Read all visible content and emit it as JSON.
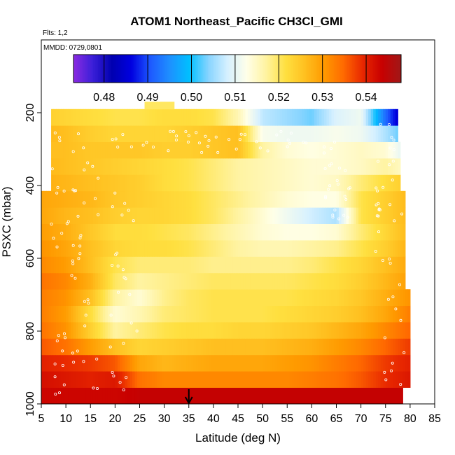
{
  "chart_data": {
    "type": "heatmap",
    "title": "ATOM1 Northeast_Pacific CH3Cl_GMI",
    "subtitle_flights": "Flts: 1,2",
    "subtitle_dates": "MMDD: 0729,0801",
    "xlabel": "Latitude (deg N)",
    "ylabel": "PSXC (mbar)",
    "xlim": [
      5,
      85
    ],
    "ylim": [
      1000,
      0
    ],
    "x_ticks": [
      5,
      10,
      15,
      20,
      25,
      30,
      35,
      40,
      45,
      50,
      55,
      60,
      65,
      70,
      75,
      80,
      85
    ],
    "y_ticks": [
      1000,
      800,
      600,
      400,
      200
    ],
    "colorbar": {
      "min": 0.473,
      "max": 0.548,
      "ticks": [
        0.48,
        0.49,
        0.5,
        0.51,
        0.52,
        0.53,
        0.54
      ],
      "tick_labels": [
        "0.48",
        "0.49",
        "0.50",
        "0.51",
        "0.52",
        "0.53",
        "0.54"
      ],
      "colors": [
        "#8B2BE2",
        "#3A1FD8",
        "#0000B0",
        "#0000E0",
        "#1E5AFF",
        "#1E90FF",
        "#00BFFF",
        "#87D4FF",
        "#D6F0FF",
        "#FFFFE8",
        "#FFF3A0",
        "#FFE040",
        "#FFC020",
        "#FF9A00",
        "#FF6A00",
        "#E82800",
        "#C80000",
        "#A01818"
      ]
    },
    "marker": {
      "x": 35,
      "label": "arrow"
    },
    "lat_bins": [
      5,
      10,
      15,
      20,
      25,
      30,
      35,
      40,
      45,
      50,
      55,
      60,
      65,
      70,
      75,
      80
    ],
    "pressure_bins": [
      1000,
      950,
      900,
      850,
      800,
      750,
      700,
      650,
      600,
      550,
      500,
      450,
      400,
      350,
      300,
      250,
      200
    ],
    "rows": [
      {
        "p_top": 955,
        "p_bot": 1000,
        "x0": 5,
        "x1": 78.5,
        "values": [
          0.543,
          0.543,
          0.543,
          0.543,
          0.544,
          0.544,
          0.544,
          0.544,
          0.544,
          0.544,
          0.544,
          0.544,
          0.544,
          0.544,
          0.544,
          0.544
        ]
      },
      {
        "p_top": 910,
        "p_bot": 955,
        "x0": 5,
        "x1": 80,
        "values": [
          0.542,
          0.541,
          0.54,
          0.541,
          0.534,
          0.532,
          0.532,
          0.532,
          0.532,
          0.532,
          0.532,
          0.533,
          0.534,
          0.536,
          0.539,
          0.541
        ]
      },
      {
        "p_top": 865,
        "p_bot": 910,
        "x0": 5,
        "x1": 80,
        "values": [
          0.54,
          0.539,
          0.538,
          0.536,
          0.529,
          0.527,
          0.528,
          0.529,
          0.529,
          0.529,
          0.53,
          0.531,
          0.533,
          0.535,
          0.538,
          0.54
        ]
      },
      {
        "p_top": 820,
        "p_bot": 865,
        "x0": 5,
        "x1": 80,
        "values": [
          0.536,
          0.534,
          0.53,
          0.526,
          0.523,
          0.524,
          0.525,
          0.526,
          0.526,
          0.526,
          0.527,
          0.528,
          0.53,
          0.532,
          0.535,
          0.538
        ]
      },
      {
        "p_top": 775,
        "p_bot": 820,
        "x0": 5,
        "x1": 80,
        "values": [
          0.534,
          0.531,
          0.524,
          0.517,
          0.519,
          0.521,
          0.522,
          0.522,
          0.523,
          0.523,
          0.524,
          0.525,
          0.527,
          0.529,
          0.532,
          0.535
        ]
      },
      {
        "p_top": 730,
        "p_bot": 775,
        "x0": 5,
        "x1": 80,
        "values": [
          0.533,
          0.53,
          0.522,
          0.514,
          0.516,
          0.519,
          0.52,
          0.521,
          0.521,
          0.521,
          0.522,
          0.523,
          0.524,
          0.526,
          0.529,
          0.533
        ]
      },
      {
        "p_top": 685,
        "p_bot": 730,
        "x0": 5,
        "x1": 80,
        "values": [
          0.533,
          0.531,
          0.526,
          0.517,
          0.514,
          0.518,
          0.52,
          0.521,
          0.521,
          0.521,
          0.521,
          0.522,
          0.523,
          0.525,
          0.528,
          0.531
        ]
      },
      {
        "p_top": 640,
        "p_bot": 685,
        "x0": 5,
        "x1": 79,
        "values": [
          0.534,
          0.532,
          0.528,
          0.52,
          0.517,
          0.518,
          0.519,
          0.52,
          0.52,
          0.52,
          0.52,
          0.521,
          0.522,
          0.524,
          0.527,
          0.53
        ]
      },
      {
        "p_top": 595,
        "p_bot": 640,
        "x0": 5,
        "x1": 79,
        "values": [
          0.532,
          0.53,
          0.526,
          0.521,
          0.519,
          0.519,
          0.519,
          0.518,
          0.518,
          0.518,
          0.518,
          0.519,
          0.521,
          0.523,
          0.526,
          0.529
        ]
      },
      {
        "p_top": 550,
        "p_bot": 595,
        "x0": 5,
        "x1": 79,
        "values": [
          0.531,
          0.529,
          0.526,
          0.523,
          0.522,
          0.522,
          0.521,
          0.519,
          0.517,
          0.516,
          0.516,
          0.517,
          0.518,
          0.521,
          0.524,
          0.528
        ]
      },
      {
        "p_top": 505,
        "p_bot": 550,
        "x0": 5,
        "x1": 79,
        "values": [
          0.53,
          0.528,
          0.525,
          0.522,
          0.522,
          0.521,
          0.52,
          0.518,
          0.516,
          0.514,
          0.513,
          0.513,
          0.514,
          0.519,
          0.523,
          0.527
        ]
      },
      {
        "p_top": 460,
        "p_bot": 505,
        "x0": 5,
        "x1": 79,
        "values": [
          0.529,
          0.527,
          0.526,
          0.524,
          0.523,
          0.523,
          0.522,
          0.52,
          0.517,
          0.514,
          0.511,
          0.508,
          0.506,
          0.521,
          0.524,
          0.527
        ]
      },
      {
        "p_top": 415,
        "p_bot": 460,
        "x0": 5,
        "x1": 79,
        "values": [
          0.529,
          0.528,
          0.527,
          0.525,
          0.524,
          0.523,
          0.522,
          0.52,
          0.518,
          0.516,
          0.514,
          0.513,
          0.513,
          0.521,
          0.524,
          0.527
        ]
      },
      {
        "p_top": 370,
        "p_bot": 415,
        "x0": 7,
        "x1": 78,
        "values": [
          0.528,
          0.527,
          0.526,
          0.525,
          0.524,
          0.522,
          0.521,
          0.519,
          0.517,
          0.516,
          0.515,
          0.514,
          0.515,
          0.519,
          0.522,
          0.525
        ]
      },
      {
        "p_top": 325,
        "p_bot": 370,
        "x0": 7,
        "x1": 78,
        "values": [
          0.527,
          0.526,
          0.525,
          0.524,
          0.523,
          0.522,
          0.521,
          0.519,
          0.517,
          0.516,
          0.515,
          0.514,
          0.514,
          0.515,
          0.517,
          0.514
        ]
      },
      {
        "p_top": 280,
        "p_bot": 325,
        "x0": 7,
        "x1": 78,
        "values": [
          0.526,
          0.526,
          0.525,
          0.525,
          0.525,
          0.524,
          0.524,
          0.525,
          0.526,
          0.517,
          0.514,
          0.513,
          0.514,
          0.515,
          0.514,
          0.508
        ]
      },
      {
        "p_top": 235,
        "p_bot": 280,
        "x0": 7,
        "x1": 77.5,
        "values": [
          0.527,
          0.526,
          0.524,
          0.523,
          0.523,
          0.523,
          0.524,
          0.525,
          0.526,
          0.512,
          0.511,
          0.511,
          0.512,
          0.511,
          0.506,
          0.5
        ]
      },
      {
        "p_top": 190,
        "p_bot": 235,
        "x0": 7,
        "x1": 77.5,
        "values": [
          0.524,
          0.523,
          0.522,
          0.521,
          0.521,
          0.522,
          0.522,
          0.521,
          0.516,
          0.507,
          0.505,
          0.503,
          0.509,
          0.511,
          0.492,
          0.478
        ]
      },
      {
        "p_top": 170,
        "p_bot": 190,
        "x0": 26,
        "x1": 32,
        "values": [
          0.52,
          0.52,
          0.52,
          0.52,
          0.52,
          0.52,
          0.52,
          0.52,
          0.52,
          0.52,
          0.52,
          0.52,
          0.52,
          0.52,
          0.52,
          0.52
        ]
      }
    ]
  }
}
